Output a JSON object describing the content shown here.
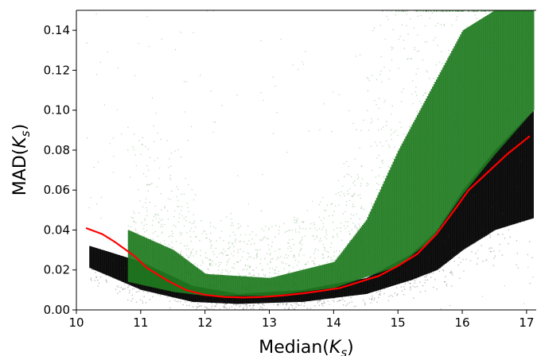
{
  "chart_data": {
    "type": "scatter",
    "title": "",
    "xlabel": "Median(K_s)",
    "ylabel": "MAD(K_s)",
    "xlabel_parts": {
      "prefix": "Median(",
      "var": "K",
      "sub": "s",
      "suffix": ")"
    },
    "ylabel_parts": {
      "prefix": "MAD(",
      "var": "K",
      "sub": "s",
      "suffix": ")"
    },
    "xlim": [
      10.0,
      17.15
    ],
    "ylim": [
      0.0,
      0.15
    ],
    "xticks": [
      "10",
      "11",
      "12",
      "13",
      "14",
      "15",
      "16",
      "17"
    ],
    "yticks": [
      "0.00",
      "0.02",
      "0.04",
      "0.06",
      "0.08",
      "0.10",
      "0.12",
      "0.14"
    ],
    "grid": false,
    "series": [
      {
        "kind": "scatter-density",
        "color": "#000000",
        "lower": [
          [
            10.2,
            0.021
          ],
          [
            11,
            0.01
          ],
          [
            11.8,
            0.004
          ],
          [
            12.5,
            0.003
          ],
          [
            13.5,
            0.004
          ],
          [
            14.5,
            0.008
          ],
          [
            15.2,
            0.015
          ],
          [
            15.6,
            0.02
          ],
          [
            16,
            0.03
          ],
          [
            16.5,
            0.04
          ],
          [
            17.1,
            0.046
          ]
        ],
        "upper": [
          [
            10.2,
            0.032
          ],
          [
            11,
            0.024
          ],
          [
            11.8,
            0.012
          ],
          [
            12.5,
            0.008
          ],
          [
            13.5,
            0.01
          ],
          [
            14.5,
            0.016
          ],
          [
            15.2,
            0.028
          ],
          [
            15.6,
            0.04
          ],
          [
            16,
            0.06
          ],
          [
            16.5,
            0.08
          ],
          [
            17.1,
            0.1
          ]
        ]
      },
      {
        "kind": "scatter-density",
        "color": "#1f7a1f",
        "lower": [
          [
            10.8,
            0.014
          ],
          [
            11.5,
            0.009
          ],
          [
            12,
            0.007
          ],
          [
            13,
            0.007
          ],
          [
            14,
            0.011
          ],
          [
            15,
            0.022
          ],
          [
            15.5,
            0.035
          ],
          [
            16,
            0.058
          ],
          [
            16.5,
            0.078
          ],
          [
            17.1,
            0.1
          ]
        ],
        "upper": [
          [
            10.8,
            0.04
          ],
          [
            11.5,
            0.03
          ],
          [
            12,
            0.018
          ],
          [
            13,
            0.016
          ],
          [
            14,
            0.024
          ],
          [
            14.5,
            0.045
          ],
          [
            15,
            0.08
          ],
          [
            15.5,
            0.11
          ],
          [
            16,
            0.14
          ],
          [
            16.5,
            0.15
          ],
          [
            17.1,
            0.15
          ]
        ]
      },
      {
        "kind": "line",
        "color": "#ff0000",
        "x": [
          10.15,
          10.4,
          10.6,
          10.9,
          11.1,
          11.4,
          11.7,
          12.0,
          12.3,
          12.6,
          12.9,
          13.2,
          13.5,
          13.8,
          14.1,
          14.4,
          14.7,
          15.0,
          15.3,
          15.6,
          15.9,
          16.1,
          16.4,
          16.7,
          17.05
        ],
        "y": [
          0.041,
          0.038,
          0.034,
          0.027,
          0.021,
          0.015,
          0.01,
          0.0075,
          0.0065,
          0.0062,
          0.0065,
          0.0072,
          0.0082,
          0.0095,
          0.011,
          0.014,
          0.017,
          0.022,
          0.028,
          0.038,
          0.051,
          0.06,
          0.069,
          0.078,
          0.087
        ]
      }
    ]
  }
}
